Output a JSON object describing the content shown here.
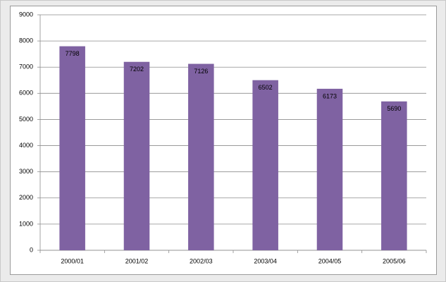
{
  "chart_data": {
    "type": "bar",
    "categories": [
      "2000/01",
      "2001/02",
      "2002/03",
      "2003/04",
      "2004/05",
      "2005/06"
    ],
    "values": [
      7798,
      7202,
      7126,
      6502,
      6173,
      5690
    ],
    "color": "#7f62a2",
    "ylim": [
      0,
      9000
    ],
    "yticks": [
      0,
      1000,
      2000,
      3000,
      4000,
      5000,
      6000,
      7000,
      8000,
      9000
    ],
    "grid": true
  }
}
